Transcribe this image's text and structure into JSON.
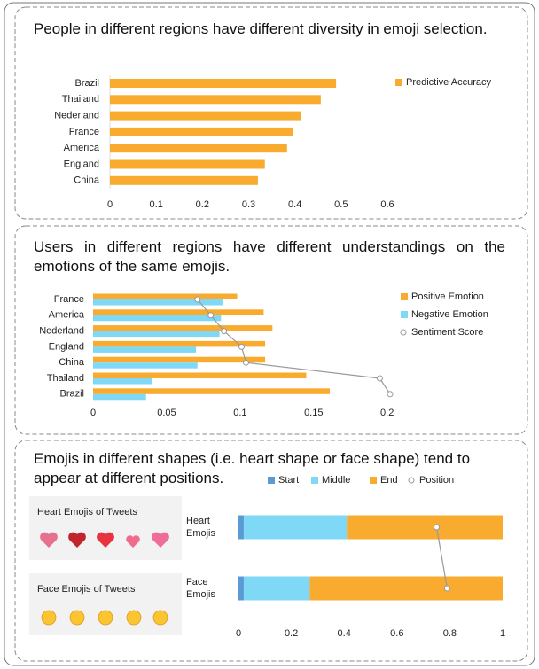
{
  "chart_data": [
    {
      "type": "bar",
      "title": "People in different regions have different diversity in emoji selection.",
      "categories": [
        "Brazil",
        "Thailand",
        "Nederland",
        "France",
        "America",
        "England",
        "China"
      ],
      "series": [
        {
          "name": "Predictive Accuracy",
          "color": "#f9ab2f",
          "values": [
            0.489,
            0.456,
            0.414,
            0.395,
            0.383,
            0.335,
            0.32
          ]
        }
      ],
      "xlim": [
        0,
        0.6
      ],
      "xticks": [
        0,
        0.1,
        0.2,
        0.3,
        0.4,
        0.5,
        0.6
      ],
      "legend": "right"
    },
    {
      "type": "bar",
      "title": "Users in different regions have different understandings on the emotions of the same emojis.",
      "categories": [
        "France",
        "America",
        "Nederland",
        "England",
        "China",
        "Thailand",
        "Brazil"
      ],
      "series": [
        {
          "name": "Positive Emotion",
          "color": "#f9ab2f",
          "values": [
            0.098,
            0.116,
            0.122,
            0.117,
            0.117,
            0.145,
            0.161
          ]
        },
        {
          "name": "Negative Emotion",
          "color": "#7fd9f6",
          "values": [
            0.088,
            0.087,
            0.086,
            0.07,
            0.071,
            0.04,
            0.036
          ]
        },
        {
          "name": "Sentiment Score",
          "color": "#999999",
          "type": "line",
          "values": [
            0.071,
            0.08,
            0.089,
            0.101,
            0.104,
            0.195,
            0.202
          ]
        }
      ],
      "xlim": [
        0,
        0.205
      ],
      "xticks": [
        0,
        0.05,
        0.1,
        0.15,
        0.2
      ],
      "legend": "right"
    },
    {
      "type": "stacked_bar",
      "title": "Emojis in different shapes (i.e. heart shape or face shape) tend to appear at different positions.",
      "categories": [
        "Heart Emojis",
        "Face Emojis"
      ],
      "series": [
        {
          "name": "Start",
          "color": "#5b9bd5",
          "values": [
            0.02,
            0.02
          ]
        },
        {
          "name": "Middle",
          "color": "#7fd9f6",
          "values": [
            0.39,
            0.25
          ]
        },
        {
          "name": "End",
          "color": "#f9ab2f",
          "values": [
            0.59,
            0.73
          ]
        },
        {
          "name": "Position",
          "color": "#999999",
          "type": "line",
          "values": [
            0.75,
            0.79
          ]
        }
      ],
      "xlim": [
        0,
        1
      ],
      "xticks": [
        0,
        0.2,
        0.4,
        0.6,
        0.8,
        1
      ],
      "legend": "top",
      "annotations": [
        "Heart Emojis of Tweets",
        "Face Emojis of Tweets"
      ]
    }
  ]
}
